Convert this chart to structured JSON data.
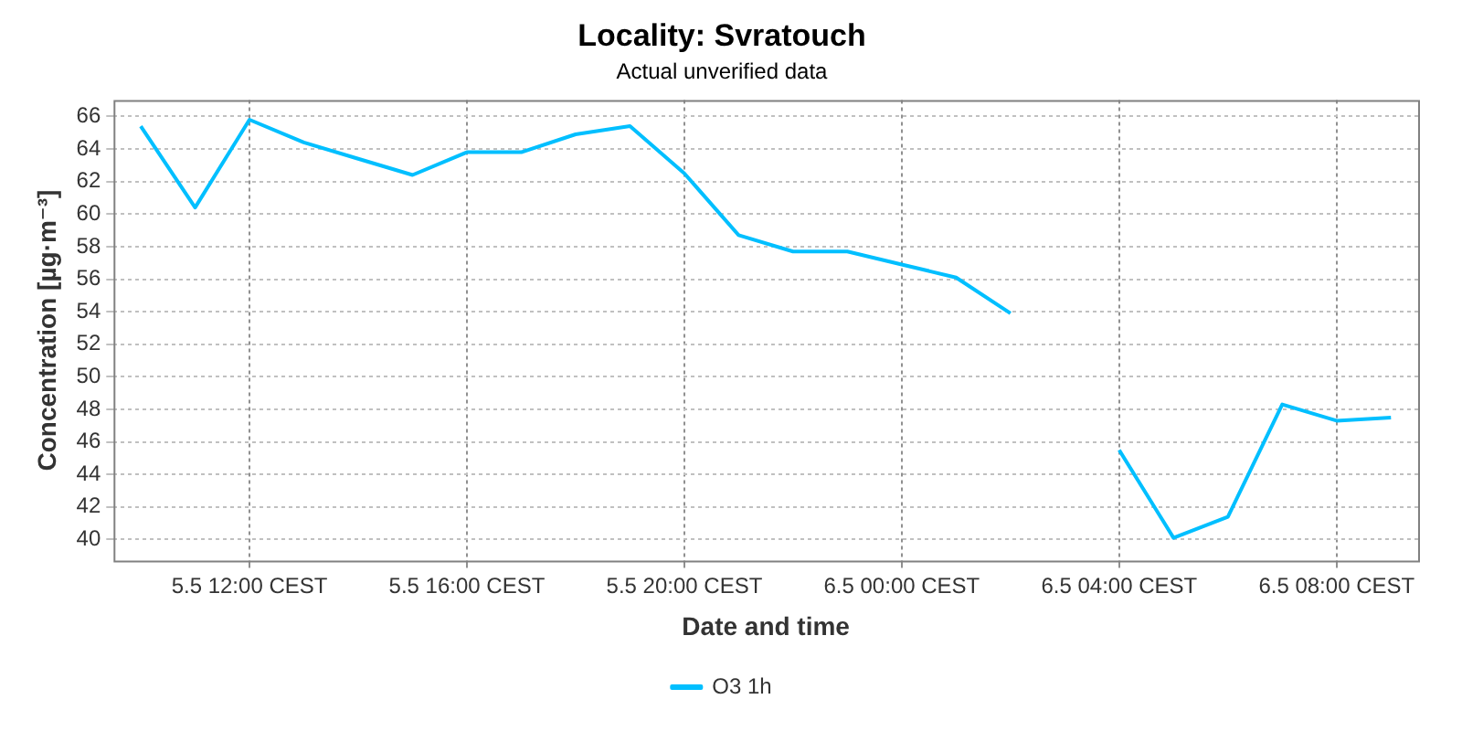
{
  "chart_data": {
    "type": "line",
    "title": "Locality: Svratouch",
    "subtitle": "Actual unverified data",
    "xlabel": "Date and time",
    "ylabel": "Concentration [µg·m⁻³]",
    "categories": [
      null,
      null,
      "5.5 12:00 CEST",
      null,
      null,
      null,
      "5.5 16:00 CEST",
      null,
      null,
      null,
      "5.5 20:00 CEST",
      null,
      null,
      null,
      "6.5 00:00 CEST",
      null,
      null,
      null,
      "6.5 04:00 CEST",
      null,
      null,
      null,
      "6.5 08:00 CEST",
      null
    ],
    "series": [
      {
        "name": "O3 1h",
        "color": "#00bfff",
        "values": [
          65.4,
          60.4,
          65.8,
          64.4,
          63.4,
          62.4,
          63.8,
          63.8,
          64.9,
          65.4,
          62.5,
          58.7,
          57.7,
          57.7,
          56.9,
          56.1,
          53.9,
          null,
          45.5,
          40.1,
          41.4,
          48.3,
          47.3,
          47.5
        ]
      }
    ],
    "ylim": [
      38.7,
      67
    ],
    "yticks": [
      40,
      42,
      44,
      46,
      48,
      50,
      52,
      54,
      56,
      58,
      60,
      62,
      64,
      66
    ],
    "grid": true,
    "legend": "bottom",
    "marker": "none",
    "line_style": "solid"
  }
}
